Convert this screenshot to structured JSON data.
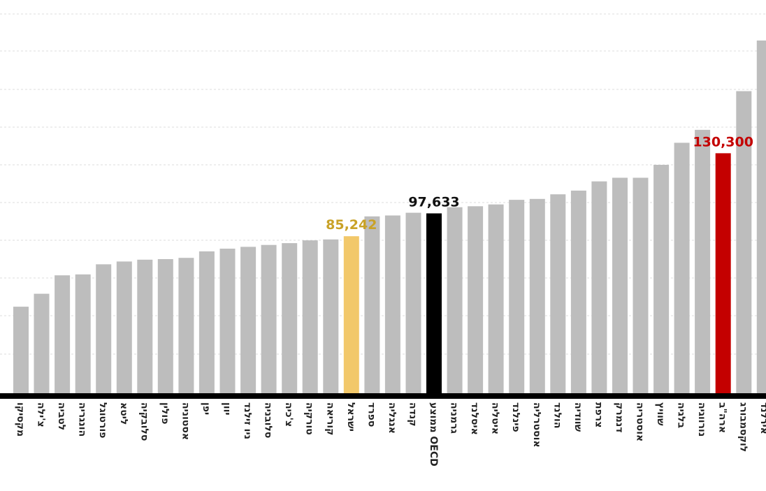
{
  "chart_data": {
    "type": "bar",
    "title": "",
    "xlabel": "",
    "ylabel": "",
    "ylim": [
      0,
      210000
    ],
    "grid": true,
    "categories": [
      "מקסיקו",
      "צ'ילה",
      "לטביה",
      "הונגריה",
      "פורטוגל",
      "ליטא",
      "סלובקיה",
      "פולין",
      "אסטוניה",
      "יפן",
      "יוון",
      "ניו זילנד",
      "סלובניה",
      "צ'כיה",
      "טורקיה",
      "קוריאה",
      "ישראל",
      "ספרד",
      "אנגליה",
      "קנדה",
      "ממוצע OECD",
      "גרמניה",
      "איסלנד",
      "איטליה",
      "פינלנד",
      "אוסטרליה",
      "הולנד",
      "שוודיה",
      "צרפת",
      "דנמרק",
      "אוסטריה",
      "שוויץ",
      "בלגיה",
      "נורווגיה",
      "ארה\"ב",
      "לוקסמבורג",
      "אירלנד"
    ],
    "values": [
      47000,
      54000,
      64000,
      64500,
      70000,
      71500,
      72500,
      72800,
      73500,
      77000,
      78500,
      79500,
      80500,
      81500,
      83000,
      83500,
      85242,
      96000,
      96500,
      98000,
      97633,
      101000,
      101500,
      102500,
      105000,
      105500,
      108000,
      110000,
      115000,
      117000,
      117000,
      124000,
      136000,
      143000,
      130300,
      164000,
      191500
    ],
    "value_labels": [
      {
        "category": "ישראל",
        "text": "85,242"
      },
      {
        "category": "ממוצע OECD",
        "text": "97,633"
      },
      {
        "category": "ארה\"ב",
        "text": "130,300"
      }
    ],
    "colors": {
      "default": "#bdbdbd",
      "ישראל": "#f2c86a",
      "ממוצע OECD": "#000000",
      "ארה\"ב": "#c40000",
      "label_ישראל": "#c9a227",
      "label_ממוצע OECD": "#111111",
      "label_ארה\"ב": "#c40000",
      "axis": "#000000",
      "grid": "#dddddd"
    }
  }
}
